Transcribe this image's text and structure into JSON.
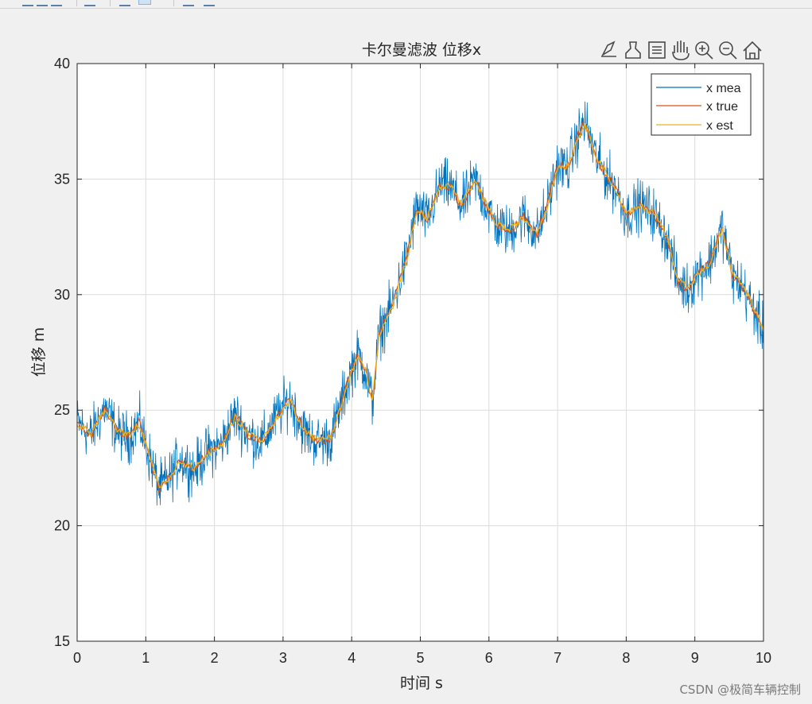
{
  "toolbar": {
    "buttons": [
      "zoom-in",
      "pan",
      "datatip",
      "brush",
      "link",
      "insert-colorbar",
      "insert-legend"
    ]
  },
  "axes_toolbar": {
    "icons": [
      "export-icon",
      "brush-icon",
      "datatip-icon",
      "pan-icon",
      "zoom-in-icon",
      "zoom-out-icon",
      "home-icon"
    ]
  },
  "watermark": "CSDN @极简车辆控制",
  "colors": {
    "mea": "#0072bd",
    "true": "#d95319",
    "est": "#edb120",
    "grid": "#dcdcdc",
    "axis": "#262626"
  },
  "chart_data": {
    "type": "line",
    "title": "卡尔曼滤波 位移x",
    "xlabel": "时间 s",
    "ylabel": "位移  m",
    "xlim": [
      0,
      10
    ],
    "ylim": [
      15,
      40
    ],
    "xticks": [
      "0",
      "1",
      "2",
      "3",
      "4",
      "5",
      "6",
      "7",
      "8",
      "9",
      "10"
    ],
    "yticks": [
      "15",
      "20",
      "25",
      "30",
      "35",
      "40"
    ],
    "grid": true,
    "legend": {
      "placement": "top-right",
      "entries": [
        "x mea",
        "x true",
        "x est"
      ]
    },
    "x": [
      0,
      0.2,
      0.4,
      0.6,
      0.75,
      0.9,
      1.05,
      1.2,
      1.35,
      1.5,
      1.7,
      1.9,
      2.1,
      2.3,
      2.5,
      2.7,
      2.9,
      3.1,
      3.3,
      3.5,
      3.7,
      3.85,
      4.0,
      4.1,
      4.2,
      4.3,
      4.4,
      4.6,
      4.8,
      4.95,
      5.1,
      5.3,
      5.45,
      5.6,
      5.8,
      5.95,
      6.1,
      6.3,
      6.5,
      6.7,
      6.85,
      7.0,
      7.15,
      7.3,
      7.4,
      7.55,
      7.7,
      7.85,
      8.0,
      8.2,
      8.4,
      8.6,
      8.75,
      8.9,
      9.05,
      9.2,
      9.4,
      9.55,
      9.7,
      9.85,
      10.0
    ],
    "series": [
      {
        "name": "x true",
        "values": [
          24.5,
          23.9,
          25.1,
          24.0,
          23.8,
          24.5,
          23.0,
          21.6,
          22.1,
          22.9,
          22.4,
          23.2,
          23.5,
          24.8,
          23.9,
          23.6,
          24.7,
          25.5,
          24.1,
          23.6,
          23.8,
          25.3,
          26.8,
          27.4,
          26.7,
          25.3,
          28.3,
          29.6,
          31.6,
          33.8,
          33.2,
          34.8,
          34.6,
          33.8,
          35.0,
          33.9,
          33.0,
          32.7,
          33.4,
          32.6,
          33.9,
          35.6,
          35.5,
          36.9,
          37.5,
          36.0,
          35.2,
          34.6,
          33.4,
          33.9,
          33.5,
          32.4,
          30.6,
          30.2,
          31.0,
          31.3,
          32.9,
          30.8,
          30.3,
          29.4,
          28.4
        ]
      },
      {
        "name": "x est",
        "values": [
          24.4,
          24.0,
          25.0,
          24.1,
          23.9,
          24.4,
          23.1,
          21.7,
          22.0,
          22.8,
          22.5,
          23.1,
          23.4,
          24.7,
          24.0,
          23.7,
          24.6,
          25.4,
          24.2,
          23.7,
          23.9,
          25.2,
          26.7,
          27.3,
          26.8,
          25.4,
          28.2,
          29.5,
          31.5,
          33.7,
          33.3,
          34.7,
          34.7,
          33.9,
          34.9,
          34.0,
          33.1,
          32.8,
          33.3,
          32.7,
          33.8,
          35.5,
          35.6,
          36.8,
          37.4,
          36.1,
          35.3,
          34.5,
          33.5,
          33.8,
          33.6,
          32.5,
          30.7,
          30.3,
          30.9,
          31.2,
          32.8,
          30.9,
          30.4,
          29.5,
          28.5
        ]
      },
      {
        "name": "x mea",
        "values": [
          24.5,
          23.9,
          25.1,
          24.0,
          23.8,
          24.5,
          23.0,
          21.6,
          22.1,
          22.9,
          22.4,
          23.2,
          23.5,
          24.8,
          23.9,
          23.6,
          24.7,
          25.5,
          24.1,
          23.6,
          23.8,
          25.3,
          26.8,
          27.4,
          26.7,
          25.3,
          28.3,
          29.6,
          31.6,
          33.8,
          33.2,
          34.8,
          34.6,
          33.8,
          35.0,
          33.9,
          33.0,
          32.7,
          33.4,
          32.6,
          33.9,
          35.6,
          35.5,
          36.9,
          37.5,
          36.0,
          35.2,
          34.6,
          33.4,
          33.9,
          33.5,
          32.4,
          30.6,
          30.2,
          31.0,
          31.3,
          32.9,
          30.8,
          30.3,
          29.4,
          28.4
        ],
        "noise_amplitude": 1.1
      }
    ]
  }
}
